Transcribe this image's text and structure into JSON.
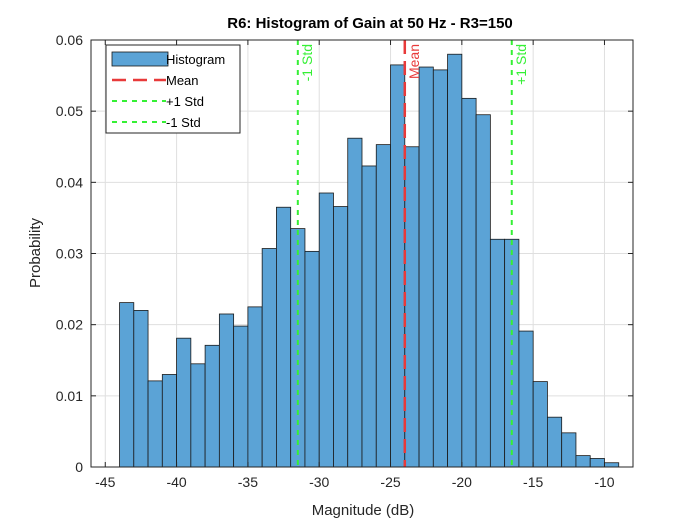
{
  "chart_data": {
    "type": "bar",
    "title": "R6: Histogram of Gain at 50 Hz  - R3=150",
    "xlabel": "Magnitude (dB)",
    "ylabel": "Probability",
    "xlim": [
      -46,
      -8
    ],
    "ylim": [
      0,
      0.06
    ],
    "xticks": [
      -45,
      -40,
      -35,
      -30,
      -25,
      -20,
      -15,
      -10
    ],
    "yticks": [
      0,
      0.01,
      0.02,
      0.03,
      0.04,
      0.05,
      0.06
    ],
    "xtick_labels": [
      "-45",
      "-40",
      "-35",
      "-30",
      "-25",
      "-20",
      "-15",
      "-10"
    ],
    "ytick_labels": [
      "0",
      "0.01",
      "0.02",
      "0.03",
      "0.04",
      "0.05",
      "0.06"
    ],
    "grid": true,
    "legend_position": "top-left",
    "bin_start": -44.0,
    "bin_width": 1.0,
    "values": [
      0.0231,
      0.022,
      0.0121,
      0.013,
      0.0181,
      0.0145,
      0.0171,
      0.0215,
      0.0198,
      0.0225,
      0.0307,
      0.0365,
      0.0335,
      0.0303,
      0.0385,
      0.0366,
      0.0462,
      0.0423,
      0.0453,
      0.0565,
      0.045,
      0.0562,
      0.0558,
      0.058,
      0.0518,
      0.0495,
      0.032,
      0.032,
      0.0191,
      0.012,
      0.007,
      0.0048,
      0.0016,
      0.0012,
      0.0006
    ],
    "series": [
      {
        "name": "Histogram",
        "kind": "bars",
        "color": "#5ba3d6"
      },
      {
        "name": "Mean",
        "kind": "vline",
        "x": -24.0,
        "color": "#e83a3a",
        "label": "Mean"
      },
      {
        "name": "+1 Std",
        "kind": "vline",
        "x": -16.5,
        "color": "#35f035",
        "label": "+1 Std"
      },
      {
        "name": "-1 Std",
        "kind": "vline",
        "x": -31.5,
        "color": "#35f035",
        "label": "-1 Std"
      }
    ]
  }
}
